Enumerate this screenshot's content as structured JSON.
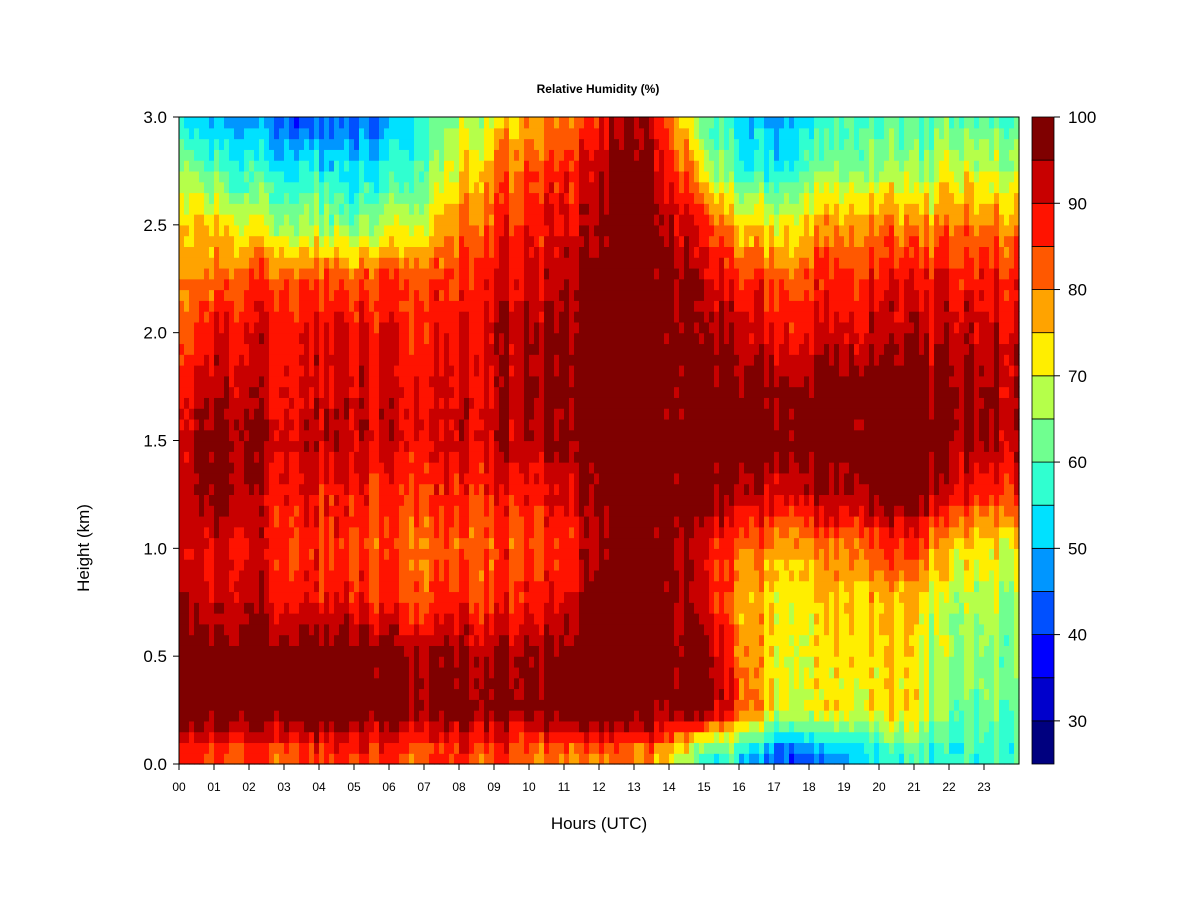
{
  "chart_data": {
    "type": "heatmap",
    "title": "Relative Humidity (%)",
    "xlabel": "Hours (UTC)",
    "ylabel": "Height (km)",
    "x_ticks": [
      "00",
      "01",
      "02",
      "03",
      "04",
      "05",
      "06",
      "07",
      "08",
      "09",
      "10",
      "11",
      "12",
      "13",
      "14",
      "15",
      "16",
      "17",
      "18",
      "19",
      "20",
      "21",
      "22",
      "23"
    ],
    "y_ticks": [
      "0.0",
      "0.5",
      "1.0",
      "1.5",
      "2.0",
      "2.5",
      "3.0"
    ],
    "xlim": [
      0,
      24
    ],
    "ylim": [
      0,
      3
    ],
    "colorbar": {
      "levels": [
        25,
        30,
        35,
        40,
        45,
        50,
        55,
        60,
        65,
        70,
        75,
        80,
        85,
        90,
        95,
        100
      ],
      "tick_labels": [
        "30",
        "40",
        "50",
        "60",
        "70",
        "80",
        "90",
        "100"
      ],
      "tick_values": [
        30,
        40,
        50,
        60,
        70,
        80,
        90,
        100
      ],
      "colors": [
        "#00007F",
        "#0000CC",
        "#0000FF",
        "#0050FF",
        "#0096FF",
        "#00E1FF",
        "#30FFD0",
        "#70FF90",
        "#B5FF4A",
        "#FFEE00",
        "#FFA300",
        "#FF5800",
        "#FF1300",
        "#C80000",
        "#7F0000"
      ]
    },
    "heights_km": [
      0.05,
      0.25,
      0.5,
      0.75,
      1.0,
      1.25,
      1.5,
      1.75,
      2.0,
      2.25,
      2.5,
      2.75,
      3.0
    ],
    "hours": [
      0,
      1,
      2,
      3,
      4,
      5,
      6,
      7,
      8,
      9,
      10,
      11,
      12,
      13,
      14,
      15,
      16,
      17,
      18,
      19,
      20,
      21,
      22,
      23,
      24
    ],
    "rh": [
      [
        88,
        100,
        100,
        96,
        93,
        91,
        91,
        88,
        82,
        80,
        75,
        68,
        53
      ],
      [
        86,
        100,
        100,
        93,
        90,
        100,
        100,
        94,
        91,
        83,
        75,
        62,
        50
      ],
      [
        85,
        100,
        100,
        93,
        90,
        92,
        96,
        93,
        90,
        85,
        70,
        58,
        48
      ],
      [
        85,
        100,
        100,
        90,
        88,
        90,
        93,
        91,
        90,
        85,
        68,
        56,
        45
      ],
      [
        85,
        100,
        100,
        88,
        85,
        88,
        93,
        91,
        90,
        83,
        65,
        55,
        42
      ],
      [
        85,
        100,
        100,
        88,
        85,
        88,
        93,
        91,
        90,
        83,
        62,
        52,
        42
      ],
      [
        85,
        100,
        98,
        86,
        83,
        86,
        92,
        91,
        90,
        85,
        68,
        56,
        47
      ],
      [
        85,
        98,
        96,
        85,
        82,
        86,
        91,
        90,
        88,
        85,
        72,
        62,
        58
      ],
      [
        85,
        98,
        96,
        86,
        82,
        86,
        91,
        90,
        88,
        85,
        80,
        72,
        65
      ],
      [
        85,
        98,
        96,
        86,
        84,
        88,
        93,
        93,
        93,
        90,
        85,
        80,
        72
      ],
      [
        82,
        98,
        96,
        88,
        85,
        88,
        95,
        95,
        95,
        92,
        88,
        84,
        78
      ],
      [
        80,
        100,
        96,
        90,
        86,
        90,
        96,
        96,
        96,
        93,
        90,
        86,
        80
      ],
      [
        80,
        100,
        100,
        100,
        94,
        96,
        100,
        100,
        100,
        100,
        94,
        92,
        86
      ],
      [
        80,
        100,
        100,
        100,
        100,
        100,
        100,
        100,
        100,
        100,
        100,
        100,
        98
      ],
      [
        78,
        100,
        100,
        100,
        100,
        100,
        100,
        100,
        100,
        100,
        96,
        92,
        85
      ],
      [
        58,
        100,
        100,
        92,
        90,
        100,
        100,
        100,
        96,
        93,
        88,
        72,
        60
      ],
      [
        55,
        86,
        82,
        78,
        82,
        94,
        100,
        98,
        93,
        88,
        75,
        58,
        52
      ],
      [
        45,
        72,
        74,
        74,
        80,
        92,
        100,
        98,
        90,
        85,
        72,
        56,
        50
      ],
      [
        45,
        72,
        72,
        74,
        80,
        94,
        100,
        98,
        90,
        86,
        78,
        62,
        55
      ],
      [
        50,
        74,
        74,
        76,
        82,
        96,
        100,
        100,
        92,
        88,
        80,
        66,
        60
      ],
      [
        55,
        74,
        74,
        76,
        84,
        98,
        100,
        100,
        93,
        88,
        80,
        66,
        60
      ],
      [
        58,
        72,
        72,
        74,
        84,
        100,
        100,
        100,
        92,
        88,
        78,
        64,
        58
      ],
      [
        55,
        62,
        64,
        66,
        74,
        90,
        96,
        96,
        92,
        88,
        80,
        70,
        60
      ],
      [
        58,
        62,
        64,
        66,
        72,
        86,
        94,
        94,
        92,
        88,
        80,
        68,
        60
      ],
      [
        58,
        62,
        64,
        66,
        72,
        86,
        94,
        94,
        92,
        88,
        80,
        68,
        60
      ]
    ]
  }
}
